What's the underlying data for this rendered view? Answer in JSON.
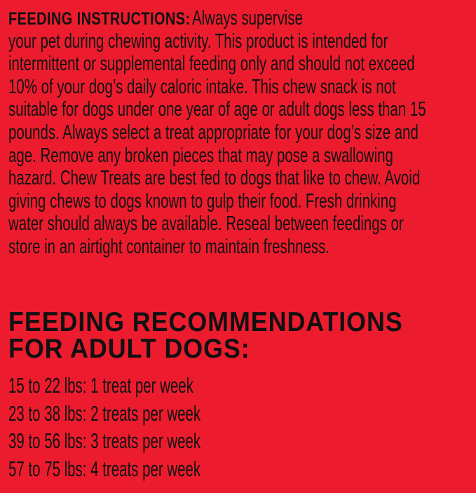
{
  "instructions": {
    "heading": "FEEDING INSTRUCTIONS:",
    "first_line_rest": "Always supervise",
    "lines": [
      "your pet during chewing activity. This product is intended for",
      "intermittent or supplemental feeding only and should not exceed",
      "10% of your dog’s daily caloric intake. This chew snack is not",
      "suitable for dogs under one year of age or adult dogs less than 15",
      "pounds. Always select a treat appropriate for your dog’s size and",
      "age. Remove any broken pieces that may pose a swallowing",
      "hazard. Chew Treats are best fed to dogs that like to chew. Avoid",
      "giving chews to dogs known to gulp their food. Fresh drinking",
      "water should always be available. Reseal between feedings or",
      "store in an airtight container to maintain freshness."
    ]
  },
  "recommendations": {
    "heading_lines": [
      "FEEDING RECOMMENDATIONS",
      "FOR ADULT DOGS:"
    ],
    "items": [
      "15 to 22 lbs: 1 treat per week",
      "23 to 38 lbs: 2 treats per week",
      "39 to 56 lbs: 3 treats per week",
      "57 to 75 lbs: 4 treats per week"
    ]
  },
  "colors": {
    "background": "#ec1c2e",
    "text": "#111111"
  }
}
